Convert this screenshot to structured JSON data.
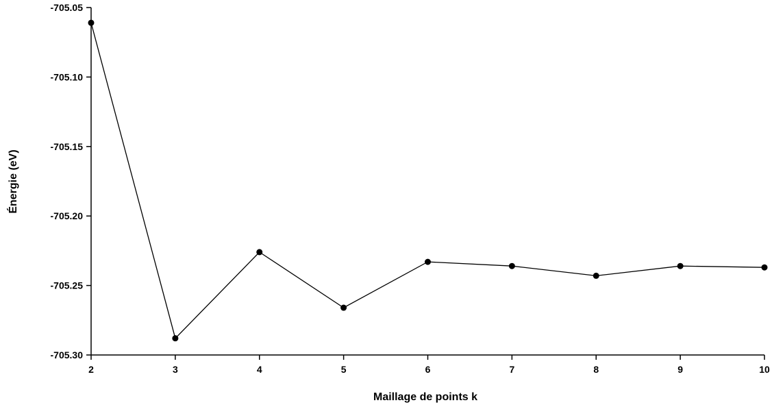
{
  "chart_data": {
    "type": "line",
    "title": "",
    "xlabel": "Maillage de points k",
    "ylabel": "Énergie (eV)",
    "x": [
      2,
      3,
      4,
      5,
      6,
      7,
      8,
      9,
      10
    ],
    "series": [
      {
        "values": [
          -705.061,
          -705.288,
          -705.226,
          -705.266,
          -705.233,
          -705.236,
          -705.243,
          -705.236,
          -705.237
        ]
      }
    ],
    "xticks": [
      "2",
      "3",
      "4",
      "5",
      "6",
      "7",
      "8",
      "9",
      "10"
    ],
    "yticks": [
      "-705.05",
      "-705.10",
      "-705.15",
      "-705.20",
      "-705.25",
      "-705.30"
    ],
    "xlim": [
      2,
      10
    ],
    "ylim": [
      -705.3,
      -705.05
    ],
    "grid": false,
    "legend": "none",
    "colors": {
      "line": "#000000",
      "marker": "#000000"
    }
  }
}
